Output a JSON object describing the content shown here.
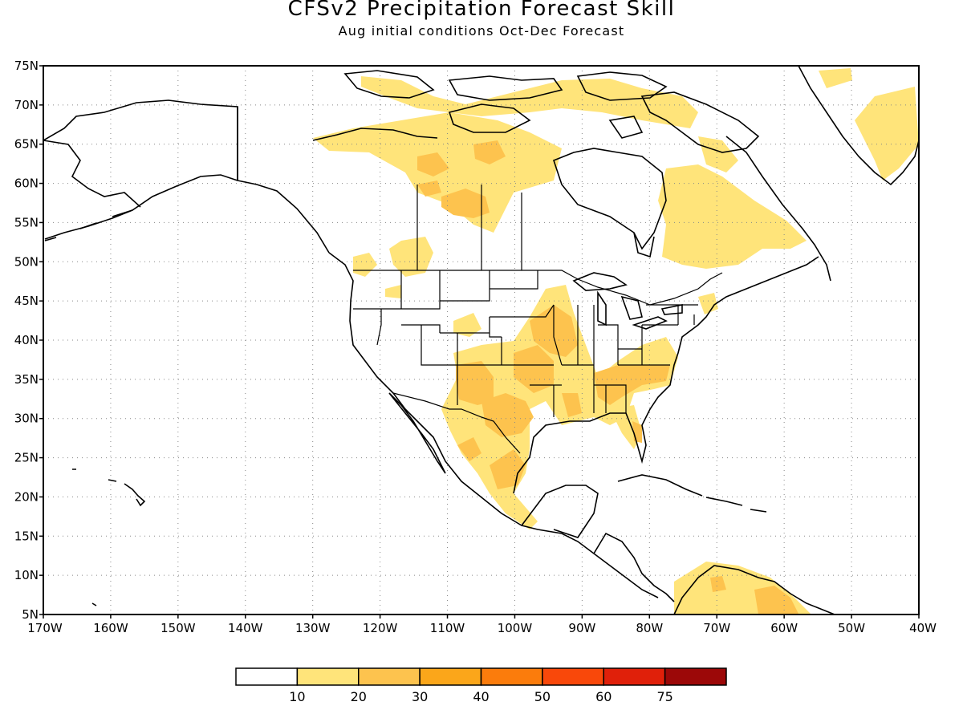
{
  "map": {
    "title": "CFSv2 Precipitation Forecast Skill",
    "subtitle": "Aug initial conditions  Oct-Dec Forecast",
    "lat_labels": [
      "75N",
      "70N",
      "65N",
      "60N",
      "55N",
      "50N",
      "45N",
      "40N",
      "35N",
      "30N",
      "25N",
      "20N",
      "15N",
      "10N",
      "5N"
    ],
    "lon_labels": [
      "170W",
      "160W",
      "150W",
      "140W",
      "130W",
      "120W",
      "110W",
      "100W",
      "90W",
      "80W",
      "70W",
      "60W",
      "50W",
      "40W"
    ],
    "extent": {
      "lon": [
        -170,
        -40
      ],
      "lat": [
        5,
        75
      ]
    },
    "grid": true
  },
  "colorbar": {
    "colors": [
      "#ffffff",
      "#ffe47a",
      "#fdc34e",
      "#fba61a",
      "#fb7c0c",
      "#f9480a",
      "#e0200a",
      "#9c0808"
    ],
    "labels": [
      "10",
      "20",
      "30",
      "40",
      "50",
      "60",
      "75"
    ]
  },
  "skill_regions": [
    {
      "level": 1,
      "color": "#ffe47a"
    },
    {
      "level": 2,
      "color": "#fdc34e"
    }
  ]
}
